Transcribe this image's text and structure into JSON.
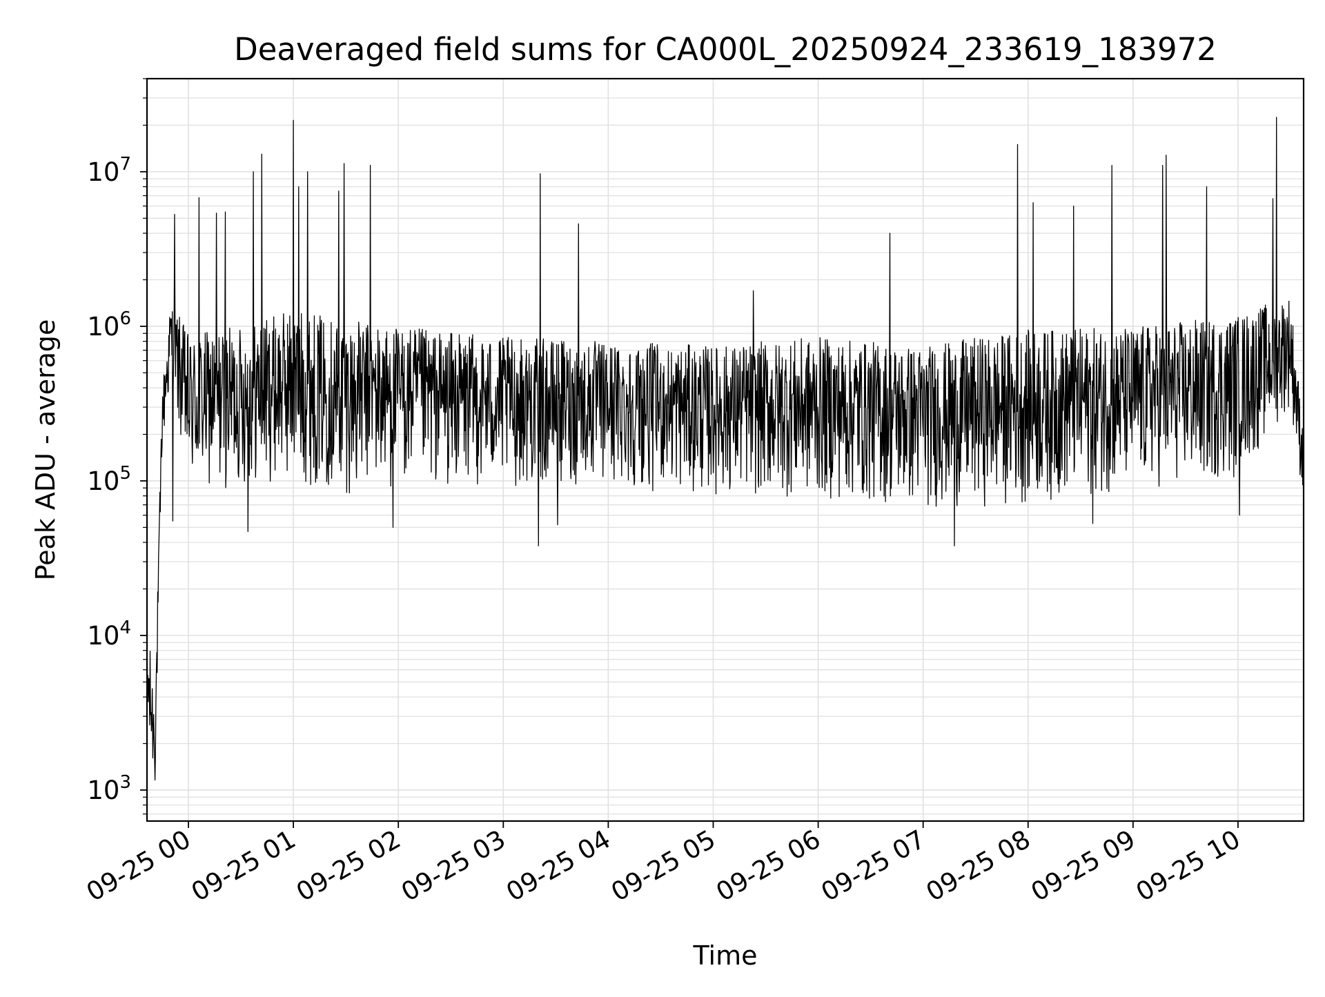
{
  "chart_data": {
    "type": "line",
    "title": "Deaveraged field sums for CA000L_20250924_233619_183972",
    "xlabel": "Time",
    "ylabel": "Peak ADU - average",
    "yscale": "log",
    "ylim": [
      630,
      40000000
    ],
    "xlim": [
      "2025-09-24 23:36:19",
      "2025-09-25 10:37:30"
    ],
    "grid": true,
    "legend": "none",
    "line_color": "#000000",
    "grid_color": "#e0e0e0",
    "x_ticks": [
      {
        "time": "2025-09-25 00:00",
        "label": "09-25 00"
      },
      {
        "time": "2025-09-25 01:00",
        "label": "09-25 01"
      },
      {
        "time": "2025-09-25 02:00",
        "label": "09-25 02"
      },
      {
        "time": "2025-09-25 03:00",
        "label": "09-25 03"
      },
      {
        "time": "2025-09-25 04:00",
        "label": "09-25 04"
      },
      {
        "time": "2025-09-25 05:00",
        "label": "09-25 05"
      },
      {
        "time": "2025-09-25 06:00",
        "label": "09-25 06"
      },
      {
        "time": "2025-09-25 07:00",
        "label": "09-25 07"
      },
      {
        "time": "2025-09-25 08:00",
        "label": "09-25 08"
      },
      {
        "time": "2025-09-25 09:00",
        "label": "09-25 09"
      },
      {
        "time": "2025-09-25 10:00",
        "label": "09-25 10"
      }
    ],
    "y_ticks": [
      {
        "value": 1000,
        "base": "10",
        "exp": "3"
      },
      {
        "value": 10000,
        "base": "10",
        "exp": "4"
      },
      {
        "value": 100000,
        "base": "10",
        "exp": "5"
      },
      {
        "value": 1000000,
        "base": "10",
        "exp": "6"
      },
      {
        "value": 10000000,
        "base": "10",
        "exp": "7"
      }
    ],
    "envelope": [
      {
        "time": "2025-09-24 23:36:19",
        "low": 1500,
        "high": 13000
      },
      {
        "time": "2025-09-24 23:41:00",
        "low": 1000,
        "high": 3800
      },
      {
        "time": "2025-09-24 23:45:00",
        "low": 150000,
        "high": 400000
      },
      {
        "time": "2025-09-24 23:50:00",
        "low": 400000,
        "high": 1500000
      },
      {
        "time": "2025-09-25 00:00",
        "low": 80000,
        "high": 900000
      },
      {
        "time": "2025-09-25 00:30",
        "low": 90000,
        "high": 1000000
      },
      {
        "time": "2025-09-25 01:00",
        "low": 100000,
        "high": 1300000
      },
      {
        "time": "2025-09-25 01:30",
        "low": 80000,
        "high": 1100000
      },
      {
        "time": "2025-09-25 02:00",
        "low": 90000,
        "high": 1000000
      },
      {
        "time": "2025-09-25 03:00",
        "low": 90000,
        "high": 850000
      },
      {
        "time": "2025-09-25 04:00",
        "low": 90000,
        "high": 800000
      },
      {
        "time": "2025-09-25 05:00",
        "low": 80000,
        "high": 750000
      },
      {
        "time": "2025-09-25 06:00",
        "low": 75000,
        "high": 850000
      },
      {
        "time": "2025-09-25 07:00",
        "low": 65000,
        "high": 750000
      },
      {
        "time": "2025-09-25 08:00",
        "low": 70000,
        "high": 950000
      },
      {
        "time": "2025-09-25 09:00",
        "low": 85000,
        "high": 1000000
      },
      {
        "time": "2025-09-25 10:00",
        "low": 100000,
        "high": 1200000
      },
      {
        "time": "2025-09-25 10:30",
        "low": 300000,
        "high": 1600000
      },
      {
        "time": "2025-09-25 10:37:30",
        "low": 70000,
        "high": 200000
      }
    ],
    "spikes": [
      {
        "time": "2025-09-24 23:52:00",
        "value": 5300000
      },
      {
        "time": "2025-09-25 00:06:00",
        "value": 6800000
      },
      {
        "time": "2025-09-25 00:16:00",
        "value": 5400000
      },
      {
        "time": "2025-09-25 00:21:00",
        "value": 5500000
      },
      {
        "time": "2025-09-25 00:37:00",
        "value": 10000000
      },
      {
        "time": "2025-09-25 00:42:00",
        "value": 13000000
      },
      {
        "time": "2025-09-25 01:00:00",
        "value": 21500000
      },
      {
        "time": "2025-09-25 01:03:00",
        "value": 8000000
      },
      {
        "time": "2025-09-25 01:08:00",
        "value": 10000000
      },
      {
        "time": "2025-09-25 01:26:00",
        "value": 7500000
      },
      {
        "time": "2025-09-25 01:29:00",
        "value": 11300000
      },
      {
        "time": "2025-09-25 01:44:00",
        "value": 11000000
      },
      {
        "time": "2025-09-25 03:21:00",
        "value": 9700000
      },
      {
        "time": "2025-09-25 03:43:00",
        "value": 4600000
      },
      {
        "time": "2025-09-25 05:23:00",
        "value": 1700000
      },
      {
        "time": "2025-09-25 06:41:00",
        "value": 4000000
      },
      {
        "time": "2025-09-25 07:54:00",
        "value": 15000000
      },
      {
        "time": "2025-09-25 08:03:00",
        "value": 6300000
      },
      {
        "time": "2025-09-25 08:26:00",
        "value": 6000000
      },
      {
        "time": "2025-09-25 08:48:00",
        "value": 11000000
      },
      {
        "time": "2025-09-25 09:17:00",
        "value": 11000000
      },
      {
        "time": "2025-09-25 09:19:00",
        "value": 12800000
      },
      {
        "time": "2025-09-25 09:42:00",
        "value": 8000000
      },
      {
        "time": "2025-09-25 10:20:00",
        "value": 6700000
      },
      {
        "time": "2025-09-25 10:22:00",
        "value": 22500000
      }
    ],
    "dips": [
      {
        "time": "2025-09-24 23:51:00",
        "value": 55000
      },
      {
        "time": "2025-09-25 00:34:00",
        "value": 47000
      },
      {
        "time": "2025-09-25 01:57:00",
        "value": 50000
      },
      {
        "time": "2025-09-25 03:20:00",
        "value": 38000
      },
      {
        "time": "2025-09-25 03:31:00",
        "value": 52000
      },
      {
        "time": "2025-09-25 07:18:00",
        "value": 38000
      },
      {
        "time": "2025-09-25 08:37:00",
        "value": 53000
      },
      {
        "time": "2025-09-25 10:01:00",
        "value": 60000
      }
    ]
  }
}
